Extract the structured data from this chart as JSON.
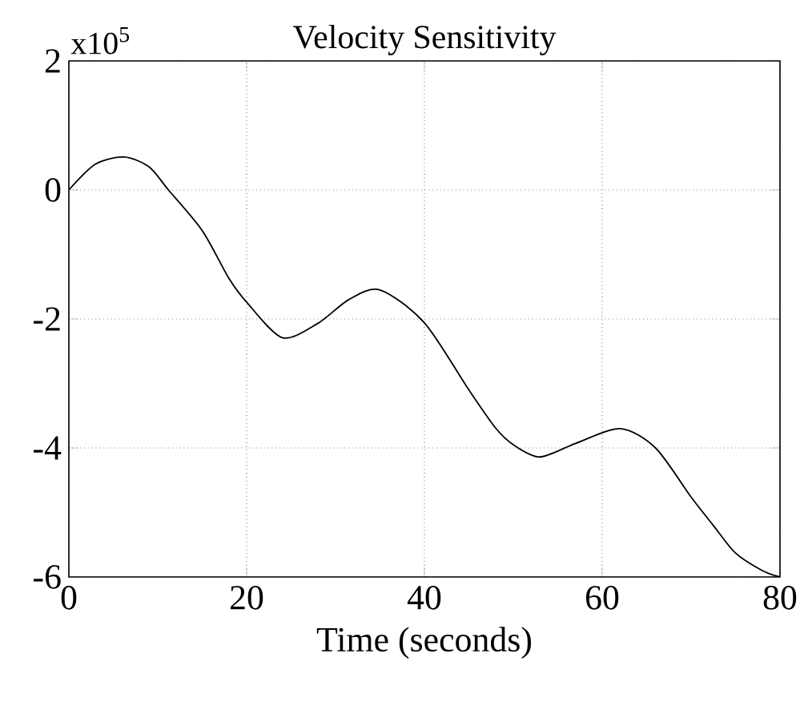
{
  "chart_data": {
    "type": "line",
    "title": "Velocity Sensitivity",
    "xlabel": "Time (seconds)",
    "annotations": [
      "x10$^{5}$"
    ],
    "x": [
      0,
      3,
      6.2,
      9,
      11.2,
      15,
      18,
      20,
      24,
      28,
      31.5,
      35,
      40,
      45,
      48,
      50,
      53,
      57,
      62,
      66,
      70,
      72.5,
      75,
      78,
      80
    ],
    "values": [
      0,
      0.4,
      0.51,
      0.36,
      0,
      -0.63,
      -1.37,
      -1.74,
      -2.29,
      -2.07,
      -1.7,
      -1.55,
      -2.06,
      -3.1,
      -3.69,
      -3.95,
      -4.14,
      -3.93,
      -3.7,
      -4.0,
      -4.76,
      -5.2,
      -5.63,
      -5.9,
      -6.0
    ],
    "color": "#000000",
    "xlim": [
      0,
      80
    ],
    "ylim": [
      -6,
      2
    ],
    "xticks": [
      0,
      20,
      40,
      60,
      80
    ],
    "yticks": [
      -6,
      -4,
      -2,
      0,
      2
    ],
    "grid": true,
    "marker": "none",
    "line_style": "solid"
  }
}
